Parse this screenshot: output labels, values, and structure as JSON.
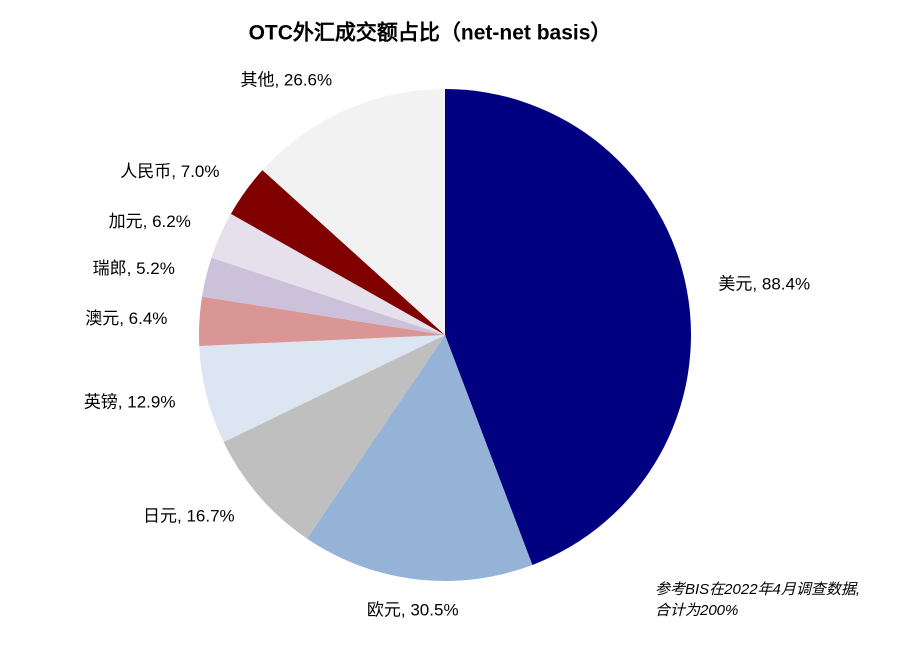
{
  "chart_data": {
    "type": "pie",
    "title": "OTC外汇成交额占比（net-net basis）",
    "categories": [
      "美元",
      "欧元",
      "日元",
      "英镑",
      "澳元",
      "瑞郎",
      "加元",
      "人民币",
      "其他"
    ],
    "values": [
      88.4,
      30.5,
      16.7,
      12.9,
      6.4,
      5.2,
      6.2,
      7.0,
      26.6
    ],
    "value_labels": [
      "美元, 88.4%",
      "欧元, 30.5%",
      "日元, 16.7%",
      "英镑, 12.9%",
      "澳元, 6.4%",
      "瑞郎, 5.2%",
      "加元, 6.2%",
      "人民币, 7.0%",
      "其他, 26.6%"
    ],
    "colors": [
      "#000080",
      "#95b3d7",
      "#bfbfbf",
      "#dce6f2",
      "#d99694",
      "#ccc1da",
      "#e6e0ec",
      "#800000",
      "#f2f2f2"
    ],
    "note": [
      "参考BIS在2022年4月调查数据,",
      "合计为200%"
    ]
  }
}
